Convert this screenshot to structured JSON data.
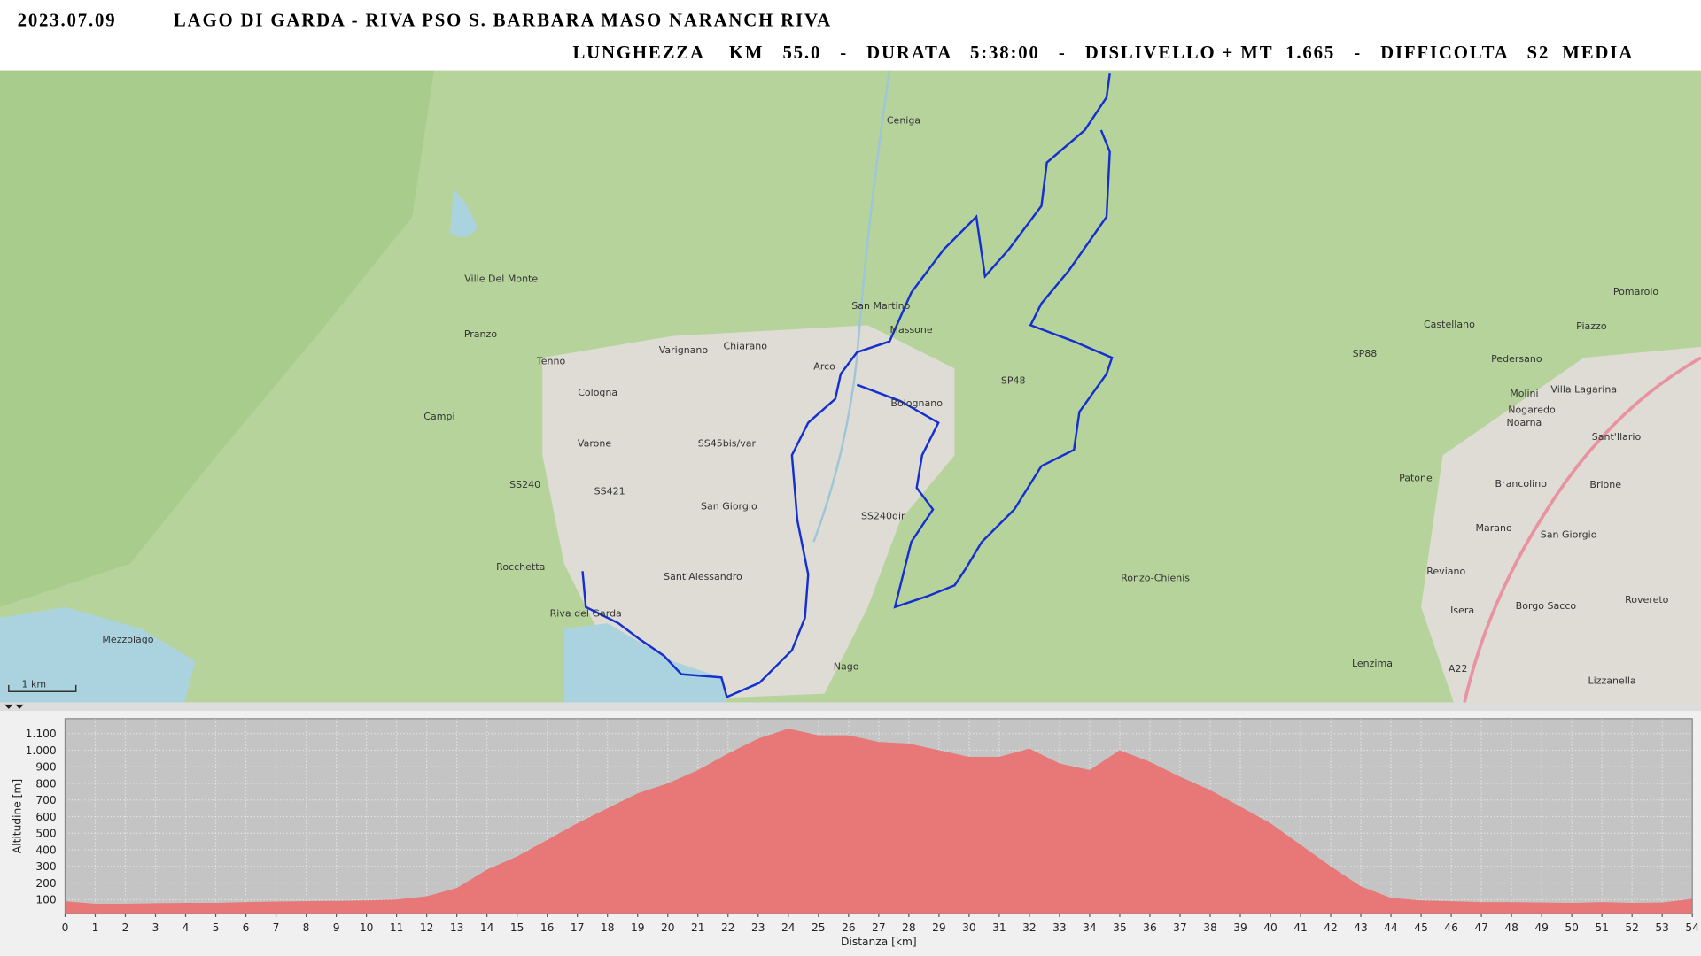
{
  "header": {
    "date": "2023.07.09",
    "title": "LAGO DI GARDA - RIVA PSO S. BARBARA MASO NARANCH RIVA",
    "subtitle": "LUNGHEZZA    KM   55.0   -   DURATA   5:38:00   -   DISLIVELLO + MT  1.665   -   DIFFICOLTA   S2  MEDIA"
  },
  "map": {
    "labels": [
      "Riva del Garda",
      "Arco",
      "Varone",
      "San Giorgio",
      "Sant'Alessandro",
      "Nago",
      "Ceniga",
      "San Martino",
      "Massone",
      "Bolognano",
      "Varignano",
      "Chiarano",
      "Cologna",
      "Tenno",
      "Pranzo",
      "Ville Del Monte",
      "Campi",
      "Rocchetta",
      "Mezzolago",
      "Ronzo-Chienis",
      "Lenzima",
      "Patone",
      "Brancolino",
      "Brione",
      "Marano",
      "San Giorgio",
      "Reviano",
      "Isera",
      "Borgo Sacco",
      "Rovereto",
      "Lizzanella",
      "Noarna",
      "Nogaredo",
      "Molini",
      "Villa Lagarina",
      "Pedersano",
      "Castellano",
      "Piazzo",
      "Pomarolo",
      "Sant'Ilario",
      "SS240",
      "SS421",
      "SS45bis/var",
      "SS240dir",
      "SP48",
      "SP88",
      "A22",
      "1 km"
    ]
  },
  "chart_data": {
    "type": "area",
    "x_label": "Distanza [km]",
    "y_label": "Altitudine [m]",
    "x": [
      0,
      1,
      2,
      3,
      4,
      5,
      6,
      7,
      8,
      9,
      10,
      11,
      12,
      13,
      14,
      15,
      16,
      17,
      18,
      19,
      20,
      21,
      22,
      23,
      24,
      25,
      26,
      27,
      28,
      29,
      30,
      31,
      32,
      33,
      34,
      35,
      36,
      37,
      38,
      39,
      40,
      41,
      42,
      43,
      44,
      45,
      46,
      47,
      48,
      49,
      50,
      51,
      52,
      53,
      54
    ],
    "series": [
      {
        "name": "Altitudine",
        "color": "#e87878",
        "values": [
          90,
          75,
          75,
          78,
          80,
          80,
          85,
          88,
          90,
          92,
          95,
          100,
          120,
          170,
          280,
          360,
          460,
          560,
          650,
          740,
          800,
          880,
          980,
          1070,
          1130,
          1090,
          1090,
          1050,
          1040,
          1000,
          960,
          960,
          1010,
          920,
          880,
          1000,
          930,
          840,
          760,
          660,
          560,
          430,
          300,
          180,
          110,
          95,
          90,
          85,
          85,
          82,
          80,
          85,
          80,
          82,
          105
        ]
      }
    ],
    "xlim": [
      0,
      54
    ],
    "ylim": [
      15,
      1190
    ],
    "xticks": [
      0,
      1,
      2,
      3,
      4,
      5,
      6,
      7,
      8,
      9,
      10,
      11,
      12,
      13,
      14,
      15,
      16,
      17,
      18,
      19,
      20,
      21,
      22,
      23,
      24,
      25,
      26,
      27,
      28,
      29,
      30,
      31,
      32,
      33,
      34,
      35,
      36,
      37,
      38,
      39,
      40,
      41,
      42,
      43,
      44,
      45,
      46,
      47,
      48,
      49,
      50,
      51,
      52,
      53,
      54
    ],
    "yticks": [
      100,
      200,
      300,
      400,
      500,
      600,
      700,
      800,
      900,
      {
        "value": 1000,
        "label": "1.000"
      },
      {
        "value": 1100,
        "label": "1.100"
      }
    ],
    "grid": true
  }
}
